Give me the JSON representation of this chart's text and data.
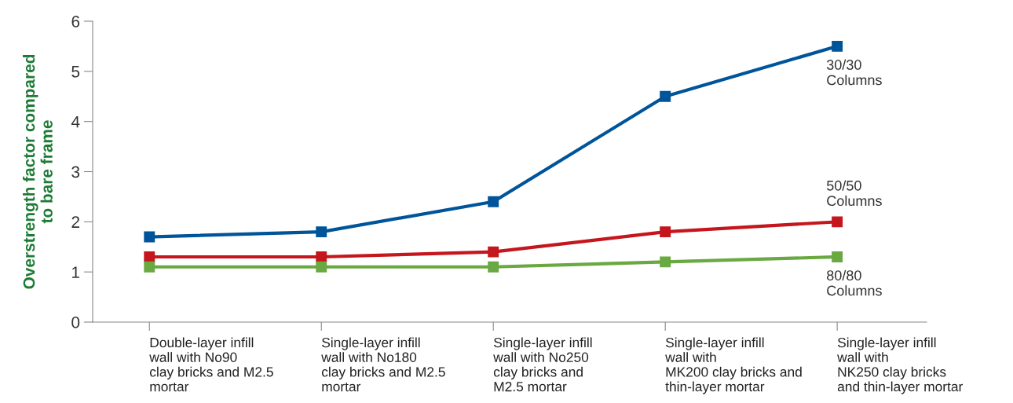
{
  "chart_data": {
    "type": "line",
    "ylabel": "Overstrength factor compared\nto bare frame",
    "categories": [
      "Double-layer infill\nwall with No90\nclay bricks and M2.5\nmortar",
      "Single-layer infill\nwall with No180\nclay bricks and M2.5\nmortar",
      "Single-layer infill\nwall with No250\nclay bricks and\nM2.5 mortar",
      "Single-layer infill\nwall with\nMK200 clay bricks and\nthin-layer mortar",
      "Single-layer infill\nwall with\nNK250 clay bricks\nand thin-layer mortar"
    ],
    "series": [
      {
        "name": "30/30\nColumns",
        "color": "#00559a",
        "values": [
          1.7,
          1.8,
          2.4,
          4.5,
          5.5
        ]
      },
      {
        "name": "50/50\nColumns",
        "color": "#c4161c",
        "values": [
          1.3,
          1.3,
          1.4,
          1.8,
          2.0
        ]
      },
      {
        "name": "80/80\nColumns",
        "color": "#6aa842",
        "values": [
          1.1,
          1.1,
          1.1,
          1.2,
          1.3
        ]
      }
    ],
    "ylim": [
      0,
      6
    ],
    "yticks": [
      0,
      1,
      2,
      3,
      4,
      5,
      6
    ],
    "marker": "square",
    "line_style": "solid",
    "grid": false,
    "legend": false
  }
}
